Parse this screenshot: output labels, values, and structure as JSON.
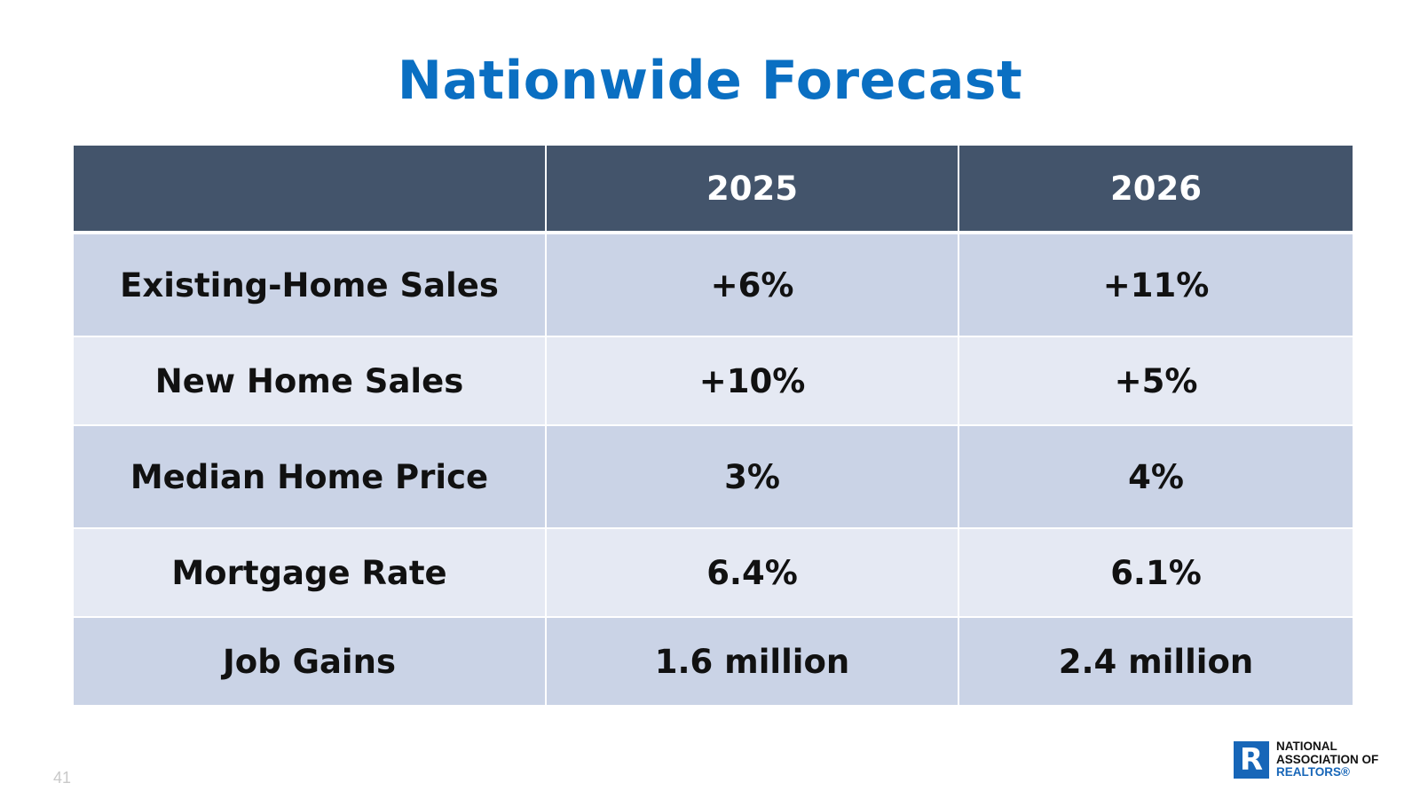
{
  "title": "Nationwide Forecast",
  "table": {
    "headers": [
      "",
      "2025",
      "2026"
    ],
    "rows": [
      {
        "label": "Existing-Home Sales",
        "y2025": "+6%",
        "y2026": "+11%"
      },
      {
        "label": "New Home Sales",
        "y2025": "+10%",
        "y2026": "+5%"
      },
      {
        "label": "Median Home Price",
        "y2025": "3%",
        "y2026": "4%"
      },
      {
        "label": "Mortgage Rate",
        "y2025": "6.4%",
        "y2026": "6.1%"
      },
      {
        "label": "Job Gains",
        "y2025": "1.6 million",
        "y2026": "2.4 million"
      }
    ]
  },
  "footer": {
    "page_number": "41",
    "logo": {
      "line1": "NATIONAL",
      "line2": "ASSOCIATION OF",
      "line3": "REALTORS®",
      "mark": "R"
    }
  },
  "colors": {
    "title": "#0a6fc2",
    "header_bg": "#43546b",
    "row_dark": "#cad3e6",
    "row_light": "#e5e9f3",
    "logo_blue": "#1766b8"
  }
}
